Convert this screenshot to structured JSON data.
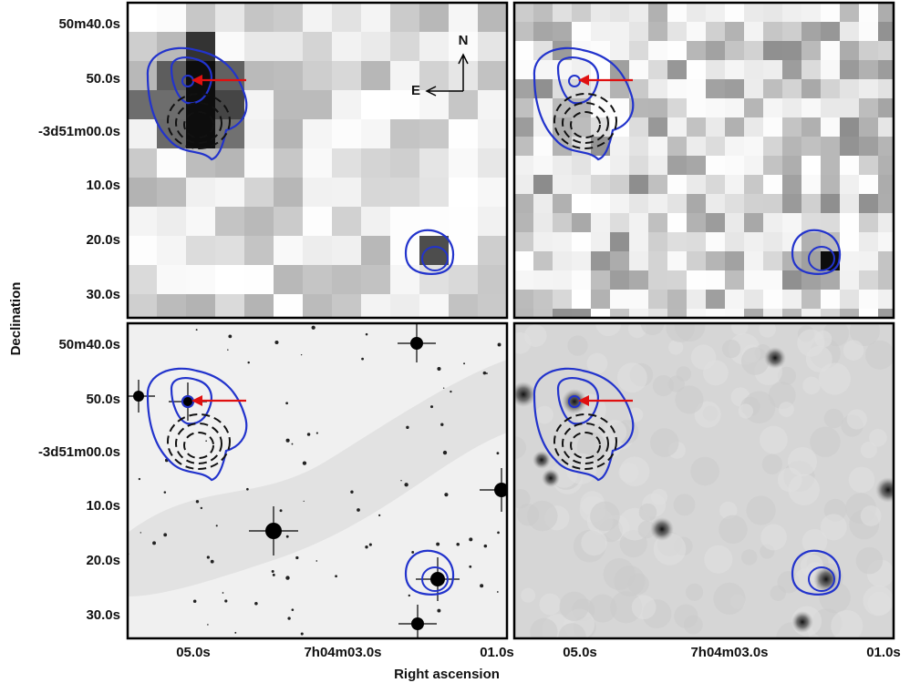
{
  "axes": {
    "x_label": "Right ascension",
    "y_label": "Declination"
  },
  "y_ticks": [
    "50m40.0s",
    "50.0s",
    "-3d51m00.0s",
    "10.0s",
    "20.0s",
    "30.0s"
  ],
  "x_ticks": [
    "05.0s",
    "7h04m03.0s",
    "01.0s"
  ],
  "compass": {
    "north": "N",
    "east": "E"
  }
}
